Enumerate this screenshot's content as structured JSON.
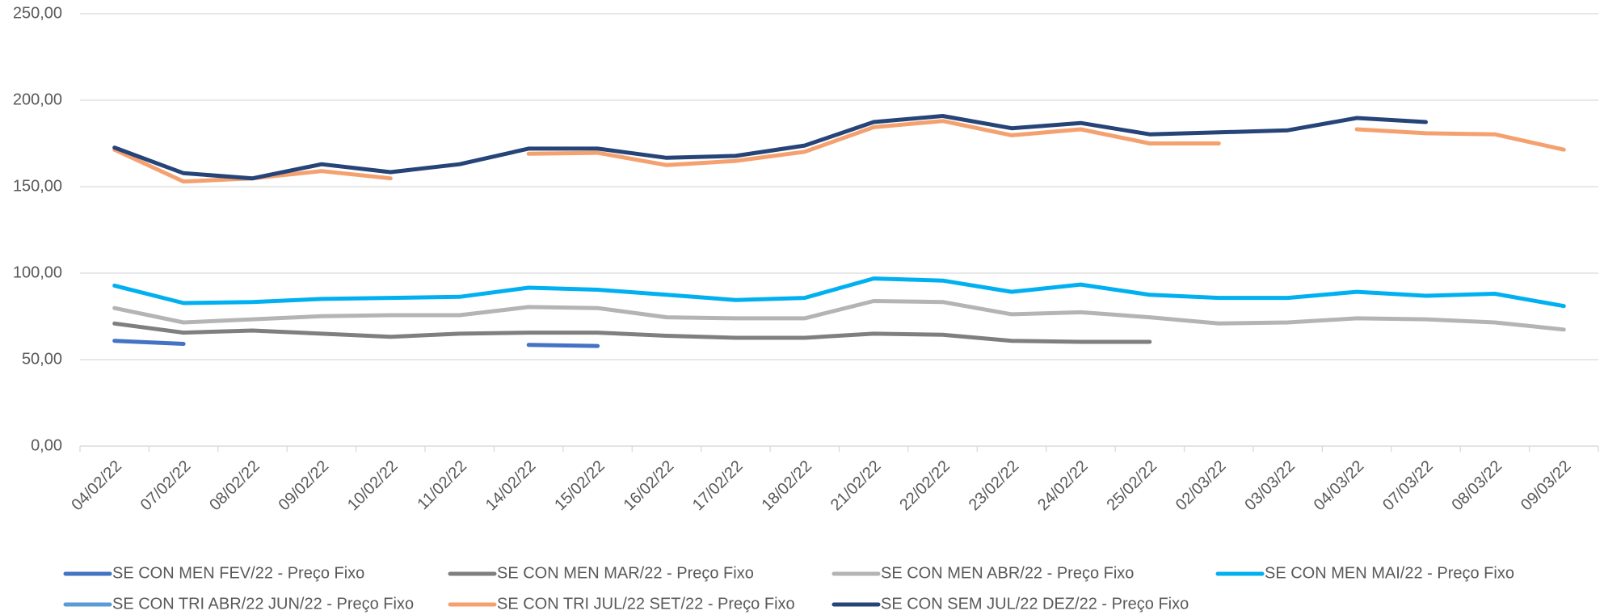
{
  "chart_data": {
    "type": "line",
    "categories": [
      "04/02/22",
      "07/02/22",
      "08/02/22",
      "09/02/22",
      "10/02/22",
      "11/02/22",
      "14/02/22",
      "15/02/22",
      "16/02/22",
      "17/02/22",
      "18/02/22",
      "21/02/22",
      "22/02/22",
      "23/02/22",
      "24/02/22",
      "25/02/22",
      "02/03/22",
      "03/03/22",
      "04/03/22",
      "07/03/22",
      "08/03/22",
      "09/03/22"
    ],
    "series": [
      {
        "name": "SE CON MEN FEV/22 - Preço Fixo",
        "color": "#4472c4",
        "values": [
          60.9,
          59.1,
          null,
          null,
          null,
          null,
          58.5,
          57.9,
          null,
          null,
          null,
          null,
          null,
          null,
          null,
          null,
          null,
          null,
          null,
          null,
          null,
          null
        ]
      },
      {
        "name": "SE CON MEN MAR/22 - Preço Fixo",
        "color": "#7f7f7f",
        "values": [
          70.9,
          65.6,
          66.8,
          65,
          63.2,
          65,
          65.6,
          65.6,
          63.8,
          62.6,
          62.6,
          65,
          64.4,
          60.9,
          60.3,
          60.3,
          null,
          null,
          null,
          null,
          null,
          null
        ]
      },
      {
        "name": "SE CON MEN ABR/22 - Preço Fixo",
        "color": "#b4b4b4",
        "values": [
          79.8,
          71.5,
          73.3,
          75.1,
          75.7,
          75.7,
          80.4,
          79.8,
          74.5,
          73.9,
          73.9,
          83.9,
          83.3,
          76.2,
          77.4,
          74.5,
          70.9,
          71.5,
          73.9,
          73.3,
          71.5,
          67.4
        ]
      },
      {
        "name": "SE CON MEN MAI/22 - Preço Fixo",
        "color": "#00b0f0",
        "values": [
          92.8,
          82.7,
          83.3,
          85.1,
          85.7,
          86.3,
          91.6,
          90.4,
          87.5,
          84.5,
          85.7,
          96.9,
          95.7,
          89.2,
          93.4,
          87.5,
          85.7,
          85.7,
          89.2,
          86.9,
          88.1,
          81
        ]
      },
      {
        "name": "SE CON TRI ABR/22 JUN/22 - Preço Fixo",
        "color": "#5b9bd5",
        "values": [
          null,
          null,
          null,
          null,
          null,
          null,
          null,
          null,
          null,
          null,
          null,
          null,
          null,
          null,
          null,
          null,
          null,
          null,
          null,
          null,
          null,
          null
        ]
      },
      {
        "name": "SE CON TRI JUL/22 SET/22 - Preço Fixo",
        "color": "#f4a16f",
        "values": [
          171.4,
          153,
          154.8,
          159,
          154.8,
          null,
          169,
          169.6,
          162.5,
          164.9,
          170.2,
          184.4,
          188,
          179.7,
          183.2,
          175,
          175,
          null,
          183.2,
          180.9,
          180.3,
          171.4
        ]
      },
      {
        "name": "SE CON SEM JUL/22 DEZ/22 - Preço Fixo",
        "color": "#264478",
        "values": [
          172.6,
          157.8,
          154.8,
          163,
          158.4,
          163,
          172,
          172,
          166.7,
          167.8,
          173.8,
          187.4,
          190.9,
          183.8,
          186.8,
          180.3,
          181.4,
          182.6,
          189.7,
          187.4,
          null,
          null
        ]
      }
    ],
    "ylim": [
      0,
      250
    ],
    "yticks": [
      {
        "value": 0,
        "label": "0,00"
      },
      {
        "value": 50,
        "label": "50,00"
      },
      {
        "value": 100,
        "label": "100,00"
      },
      {
        "value": 150,
        "label": "150,00"
      },
      {
        "value": 200,
        "label": "200,00"
      },
      {
        "value": 250,
        "label": "250,00"
      }
    ],
    "grid": true
  }
}
